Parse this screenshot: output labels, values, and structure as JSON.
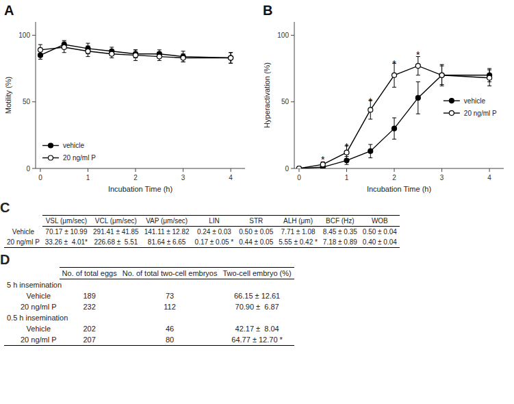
{
  "chart_data": [
    {
      "type": "line",
      "title": "A",
      "x_label": "Incubation Time (h)",
      "y_label": "Motility (%)",
      "x": [
        0,
        0.5,
        1,
        1.5,
        2,
        2.5,
        3,
        4
      ],
      "xlim": [
        -0.1,
        4.3
      ],
      "xticks": [
        0,
        1,
        2,
        3,
        4
      ],
      "ylim": [
        0,
        110
      ],
      "yticks": [
        0,
        50,
        100
      ],
      "legend": "lower left",
      "series": [
        {
          "name": "vehicle",
          "color": "black",
          "marker": "filled-circle",
          "line_style": "solid",
          "values": [
            85,
            93,
            90,
            88,
            86,
            86,
            84,
            83
          ],
          "errors": [
            3,
            3,
            4,
            3,
            3,
            3,
            4,
            4
          ]
        },
        {
          "name": "20 ng/ml P",
          "color": "black",
          "marker": "open-circle",
          "line_style": "solid",
          "values": [
            89,
            91,
            88,
            86,
            85,
            84,
            83,
            83
          ],
          "errors": [
            4,
            4,
            4,
            3,
            4,
            3,
            3,
            4
          ]
        }
      ]
    },
    {
      "type": "line",
      "title": "B",
      "x_label": "Incubation Time (h)",
      "y_label": "Hyperactivation (%)",
      "x": [
        0,
        0.5,
        1,
        1.5,
        2,
        2.5,
        3,
        4
      ],
      "xlim": [
        -0.1,
        4.3
      ],
      "xticks": [
        0,
        1,
        2,
        3,
        4
      ],
      "ylim": [
        0,
        110
      ],
      "yticks": [
        0,
        50,
        100
      ],
      "legend": "center right",
      "series": [
        {
          "name": "vehicle",
          "color": "black",
          "marker": "filled-circle",
          "line_style": "solid",
          "values": [
            0,
            1,
            6,
            13,
            30,
            53,
            70,
            70
          ],
          "errors": [
            0,
            1,
            3,
            5,
            8,
            12,
            7,
            5
          ]
        },
        {
          "name": "20 ng/ml P",
          "color": "black",
          "marker": "open-circle",
          "line_style": "solid",
          "values": [
            0,
            3,
            12,
            44,
            70,
            77,
            70,
            68
          ],
          "errors": [
            0,
            2,
            5,
            7,
            9,
            7,
            8,
            6
          ]
        }
      ],
      "annotations": [
        {
          "text": "*",
          "x": 0.5,
          "y": 8
        },
        {
          "text": "*",
          "x": 1.0,
          "y": 18
        },
        {
          "text": "*",
          "x": 1.5,
          "y": 52
        },
        {
          "text": "*",
          "x": 2.0,
          "y": 80
        },
        {
          "text": "*",
          "x": 2.5,
          "y": 87
        }
      ]
    },
    {
      "type": "table",
      "title": "C",
      "columns": [
        "VSL (μm/sec)",
        "VCL (μm/sec)",
        "VAP (μm/sec)",
        "LIN",
        "STR",
        "ALH (μm)",
        "BCF (Hz)",
        "WOB"
      ],
      "rows": [
        "Vehicle",
        "20 ng/ml P"
      ],
      "cells": [
        [
          "70.17 ± 10.99",
          "291.41 ± 41.85",
          "141.11 ± 12.82",
          "0.24 ± 0.03",
          "0.50 ± 0.05",
          "7.71 ± 1.08",
          "8.45 ± 0.35",
          "0.50 ± 0.04"
        ],
        [
          "33.26 ±  4.01*",
          "226.68 ±  5.51",
          "81.64 ± 6.65",
          "0.17 ± 0.05 *",
          "0.44 ± 0.05",
          "5.55 ± 0.42 *",
          "7.18 ± 0.89",
          "0.40 ± 0.04"
        ]
      ]
    },
    {
      "type": "table",
      "title": "D",
      "columns": [
        "No. of total eggs",
        "No. of total two-cell embryos",
        "Two-cell embryo (%)"
      ],
      "groups": [
        "5 h insemination",
        "0.5 h insemination"
      ],
      "rows": [
        "Vehicle",
        "20 ng/ml P"
      ],
      "cells": [
        [
          [
            "189",
            "73",
            "66.15 ± 12.61"
          ],
          [
            "232",
            "112",
            "70.90 ±  6.87"
          ]
        ],
        [
          [
            "202",
            "46",
            "42.17 ±  8.04"
          ],
          [
            "207",
            "80",
            "64.77 ± 12.70 *"
          ]
        ]
      ]
    }
  ]
}
